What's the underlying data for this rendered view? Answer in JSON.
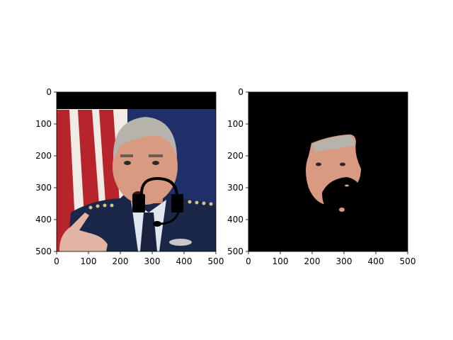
{
  "panels": [
    {
      "name": "original-with-headset",
      "description_hidden": "",
      "xlim": [
        0,
        500
      ],
      "ylim": [
        0,
        500
      ],
      "xticks": [
        "0",
        "100",
        "200",
        "300",
        "400",
        "500"
      ],
      "yticks": [
        "0",
        "100",
        "200",
        "300",
        "400",
        "500"
      ]
    },
    {
      "name": "face-mask",
      "description_hidden": "",
      "xlim": [
        0,
        500
      ],
      "ylim": [
        0,
        500
      ],
      "xticks": [
        "0",
        "100",
        "200",
        "300",
        "400",
        "500"
      ],
      "yticks": [
        "0",
        "100",
        "200",
        "300",
        "400",
        "500"
      ]
    }
  ],
  "colors": {
    "background": "#ffffff",
    "axis": "#000000",
    "mask_bg": "#000000",
    "flag_red": "#b8242c",
    "flag_white": "#f1ebe6",
    "flag_blue": "#1f2f6a",
    "uniform": "#1b2748",
    "skin": "#d99a82",
    "hair": "#b6b2ac",
    "headset": "#000000"
  }
}
